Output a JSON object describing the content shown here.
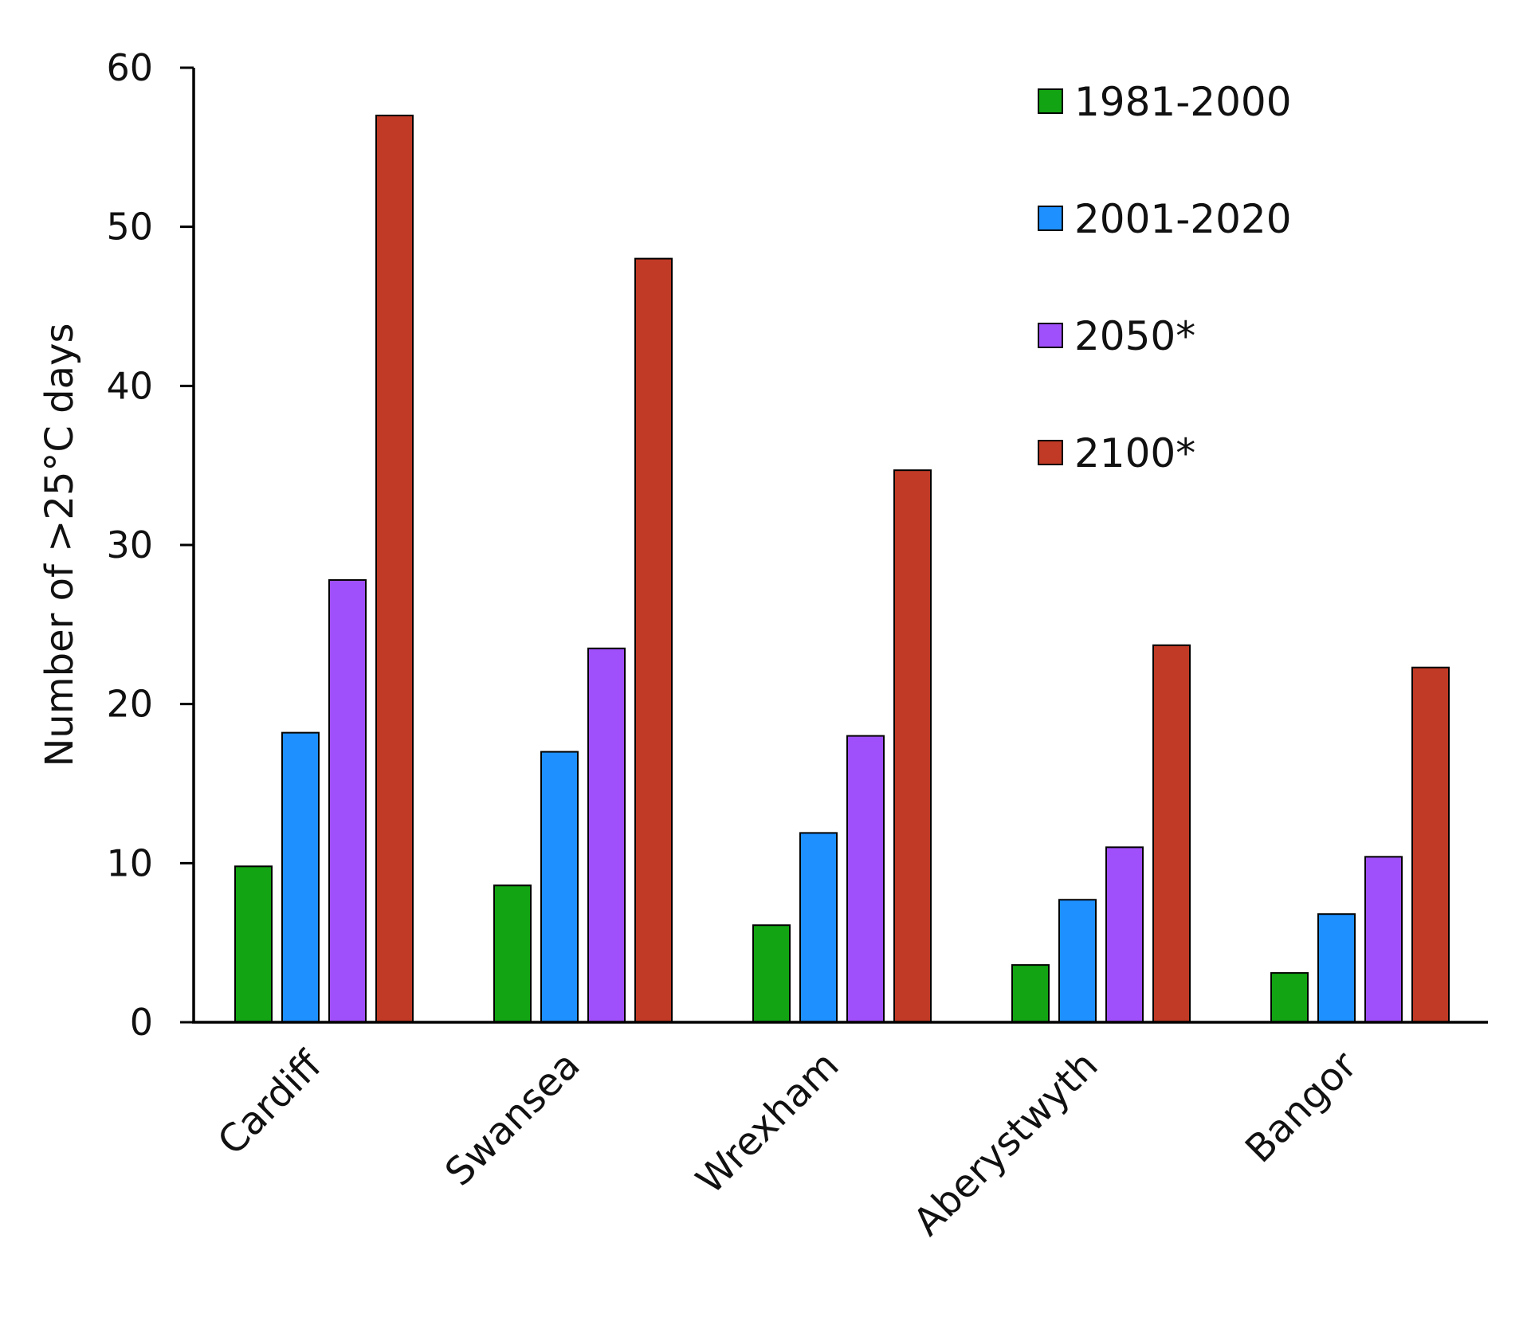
{
  "chart_data": {
    "type": "bar",
    "title": "",
    "xlabel": "",
    "ylabel": "Number of >25°C days",
    "ylim": [
      0,
      60
    ],
    "yticks": [
      0,
      10,
      20,
      30,
      40,
      50,
      60
    ],
    "grid": false,
    "legend_position": "top-right",
    "categories": [
      "Cardiff",
      "Swansea",
      "Wrexham",
      "Aberystwyth",
      "Bangor"
    ],
    "series": [
      {
        "name": "1981-2000",
        "color": "#12a412",
        "values": [
          9.8,
          8.6,
          6.1,
          3.6,
          3.1
        ]
      },
      {
        "name": "2001-2020",
        "color": "#1e90ff",
        "values": [
          18.2,
          17.0,
          11.9,
          7.7,
          6.8
        ]
      },
      {
        "name": "2050*",
        "color": "#a050fa",
        "values": [
          27.8,
          23.5,
          18.0,
          11.0,
          10.4
        ]
      },
      {
        "name": "2100*",
        "color": "#c03a25",
        "values": [
          57.0,
          48.0,
          34.7,
          23.7,
          22.3
        ]
      }
    ]
  }
}
